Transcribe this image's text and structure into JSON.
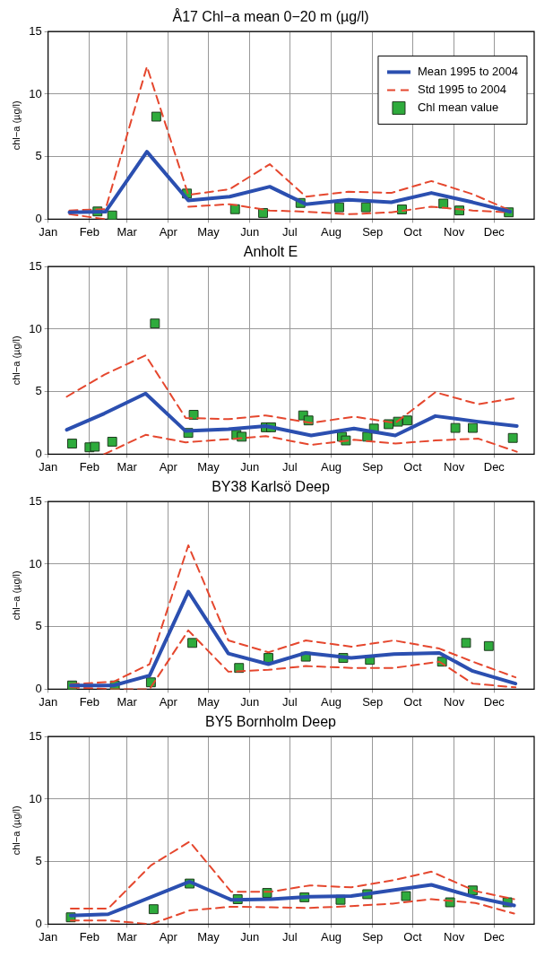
{
  "chart_data": [
    {
      "type": "line",
      "title": "Å17 Chl−a mean 0−20 m (µg/l)",
      "ylabel": "chl−a (µg/l)",
      "xlim": [
        "--01-01",
        "--12-31"
      ],
      "xticks": [
        {
          "value": "--01-01",
          "label": "Jan"
        },
        {
          "value": "--02-01",
          "label": "Feb"
        },
        {
          "value": "--03-01",
          "label": "Mar"
        },
        {
          "value": "--04-01",
          "label": "Apr"
        },
        {
          "value": "--05-01",
          "label": "May"
        },
        {
          "value": "--06-01",
          "label": "Jun"
        },
        {
          "value": "--07-01",
          "label": "Jul"
        },
        {
          "value": "--08-01",
          "label": "Aug"
        },
        {
          "value": "--09-01",
          "label": "Sep"
        },
        {
          "value": "--10-01",
          "label": "Oct"
        },
        {
          "value": "--11-01",
          "label": "Nov"
        },
        {
          "value": "--12-01",
          "label": "Dec"
        }
      ],
      "ylim": [
        0,
        15
      ],
      "yticks": [
        0,
        5,
        10,
        15
      ],
      "grid": true,
      "legend": "top right",
      "x": [
        "--01-17",
        "--02-13",
        "--03-16",
        "--04-16",
        "--05-17",
        "--06-16",
        "--07-13",
        "--08-14",
        "--09-15",
        "--10-15",
        "--11-15",
        "--12-13"
      ],
      "series": [
        {
          "name": "Mean 1995 to 2004",
          "color": "#2b4fb0",
          "line_style": "solid",
          "values": [
            0.55,
            0.6,
            5.4,
            1.5,
            1.8,
            2.6,
            1.2,
            1.55,
            1.35,
            2.1,
            1.35,
            0.6
          ]
        },
        {
          "name": "Std 1995 to 2004",
          "color": "#e5472e",
          "line_style": "dashed",
          "values": [
            0.7,
            0.8,
            12.2,
            1.95,
            2.4,
            4.4,
            1.8,
            2.2,
            2.1,
            3.05,
            2.0,
            0.7
          ]
        },
        {
          "color": "#e5472e",
          "line_style": "dashed",
          "values": [
            0.4,
            0,
            null,
            1.0,
            1.2,
            0.7,
            0.6,
            0.4,
            0.55,
            1.0,
            0.7,
            0.55
          ]
        },
        {
          "name": "Chl mean value",
          "type": "scatter",
          "marker": "square",
          "color": "#2eab3c",
          "x": [
            "--02-07",
            "--02-18",
            "--03-23",
            "--04-15",
            "--05-21",
            "--06-11",
            "--07-09",
            "--08-07",
            "--08-27",
            "--09-23",
            "--10-24",
            "--11-05",
            "--12-12"
          ],
          "values": [
            0.62,
            0.3,
            8.2,
            2.05,
            0.8,
            0.5,
            1.3,
            0.95,
            0.95,
            0.78,
            1.25,
            0.7,
            0.55
          ]
        }
      ]
    },
    {
      "type": "line",
      "title": "Anholt E",
      "ylabel": "chl−a (µg/l)",
      "xlim": [
        "--01-01",
        "--12-31"
      ],
      "xticks": [
        {
          "value": "--01-01",
          "label": "Jan"
        },
        {
          "value": "--02-01",
          "label": "Feb"
        },
        {
          "value": "--03-01",
          "label": "Mar"
        },
        {
          "value": "--04-01",
          "label": "Apr"
        },
        {
          "value": "--05-01",
          "label": "May"
        },
        {
          "value": "--06-01",
          "label": "Jun"
        },
        {
          "value": "--07-01",
          "label": "Jul"
        },
        {
          "value": "--08-01",
          "label": "Aug"
        },
        {
          "value": "--09-01",
          "label": "Sep"
        },
        {
          "value": "--10-01",
          "label": "Oct"
        },
        {
          "value": "--11-01",
          "label": "Nov"
        },
        {
          "value": "--12-01",
          "label": "Dec"
        }
      ],
      "ylim": [
        0,
        15
      ],
      "yticks": [
        0,
        5,
        10,
        15
      ],
      "grid": true,
      "x": [
        "--01-15",
        "--02-12",
        "--03-15",
        "--04-14",
        "--05-16",
        "--06-13",
        "--07-17",
        "--08-18",
        "--09-18",
        "--10-18",
        "--11-19",
        "--12-18"
      ],
      "series": [
        {
          "color": "#2b4fb0",
          "line_style": "solid",
          "values": [
            1.95,
            3.25,
            4.85,
            1.85,
            2.0,
            2.25,
            1.5,
            2.05,
            1.5,
            3.05,
            2.6,
            2.25
          ]
        },
        {
          "color": "#e5472e",
          "line_style": "dashed",
          "values": [
            4.6,
            6.35,
            7.9,
            2.9,
            2.8,
            3.1,
            2.5,
            3.0,
            2.5,
            4.95,
            4.0,
            4.5
          ]
        },
        {
          "color": "#e5472e",
          "line_style": "dashed",
          "values": [
            null,
            0,
            1.55,
            0.95,
            1.2,
            1.45,
            0.75,
            1.15,
            0.85,
            1.1,
            1.25,
            0.2
          ]
        },
        {
          "type": "scatter",
          "marker": "square",
          "color": "#2eab3c",
          "x": [
            "--01-19",
            "--02-01",
            "--02-05",
            "--02-18",
            "--03-22",
            "--04-16",
            "--04-20",
            "--05-22",
            "--05-26",
            "--06-13",
            "--06-17",
            "--07-11",
            "--07-15",
            "--08-09",
            "--08-12",
            "--08-28",
            "--09-02",
            "--09-13",
            "--09-20",
            "--09-27",
            "--11-02",
            "--11-15",
            "--12-15"
          ],
          "values": [
            0.85,
            0.55,
            0.6,
            1.0,
            10.45,
            1.7,
            3.15,
            1.55,
            1.4,
            2.15,
            2.15,
            3.1,
            2.7,
            1.4,
            1.1,
            1.4,
            2.05,
            2.4,
            2.6,
            2.7,
            2.1,
            2.1,
            1.3
          ]
        }
      ]
    },
    {
      "type": "line",
      "title": "BY38 Karlsö Deep",
      "ylabel": "chl−a (µg/l)",
      "xlim": [
        "--01-01",
        "--12-31"
      ],
      "xticks": [
        {
          "value": "--01-01",
          "label": "Jan"
        },
        {
          "value": "--02-01",
          "label": "Feb"
        },
        {
          "value": "--03-01",
          "label": "Mar"
        },
        {
          "value": "--04-01",
          "label": "Apr"
        },
        {
          "value": "--05-01",
          "label": "May"
        },
        {
          "value": "--06-01",
          "label": "Jun"
        },
        {
          "value": "--07-01",
          "label": "Jul"
        },
        {
          "value": "--08-01",
          "label": "Aug"
        },
        {
          "value": "--09-01",
          "label": "Sep"
        },
        {
          "value": "--10-01",
          "label": "Oct"
        },
        {
          "value": "--11-01",
          "label": "Nov"
        },
        {
          "value": "--12-01",
          "label": "Dec"
        }
      ],
      "ylim": [
        0,
        15
      ],
      "yticks": [
        0,
        5,
        10,
        15
      ],
      "grid": true,
      "x": [
        "--01-18",
        "--02-19",
        "--03-18",
        "--04-16",
        "--05-16",
        "--06-15",
        "--07-13",
        "--08-16",
        "--09-17",
        "--10-21",
        "--11-15",
        "--12-17"
      ],
      "series": [
        {
          "color": "#2b4fb0",
          "line_style": "solid",
          "values": [
            0.3,
            0.3,
            1.1,
            7.8,
            2.85,
            2.0,
            2.9,
            2.5,
            2.8,
            2.9,
            1.45,
            0.45
          ]
        },
        {
          "color": "#e5472e",
          "line_style": "dashed",
          "values": [
            0.4,
            0.6,
            2.0,
            11.5,
            3.9,
            2.95,
            3.9,
            3.4,
            3.9,
            3.25,
            2.2,
            0.95
          ]
        },
        {
          "color": "#e5472e",
          "line_style": "dashed",
          "values": [
            0.15,
            0,
            0,
            4.7,
            1.4,
            1.55,
            1.85,
            1.7,
            1.7,
            2.2,
            0.45,
            0.15
          ]
        },
        {
          "type": "scatter",
          "marker": "square",
          "color": "#2eab3c",
          "x": [
            "--01-19",
            "--02-20",
            "--03-19",
            "--04-19",
            "--05-24",
            "--06-15",
            "--07-13",
            "--08-10",
            "--08-30",
            "--10-23",
            "--11-10",
            "--11-27"
          ],
          "values": [
            0.3,
            0.3,
            0.55,
            3.7,
            1.7,
            2.5,
            2.6,
            2.5,
            2.35,
            2.2,
            3.7,
            3.45
          ]
        }
      ]
    },
    {
      "type": "line",
      "title": "BY5 Bornholm Deep",
      "ylabel": "chl−a (µg/l)",
      "xlim": [
        "--01-01",
        "--12-31"
      ],
      "xticks": [
        {
          "value": "--01-01",
          "label": "Jan"
        },
        {
          "value": "--02-01",
          "label": "Feb"
        },
        {
          "value": "--03-01",
          "label": "Mar"
        },
        {
          "value": "--04-01",
          "label": "Apr"
        },
        {
          "value": "--05-01",
          "label": "May"
        },
        {
          "value": "--06-01",
          "label": "Jun"
        },
        {
          "value": "--07-01",
          "label": "Jul"
        },
        {
          "value": "--08-01",
          "label": "Aug"
        },
        {
          "value": "--09-01",
          "label": "Sep"
        },
        {
          "value": "--10-01",
          "label": "Oct"
        },
        {
          "value": "--11-01",
          "label": "Nov"
        },
        {
          "value": "--12-01",
          "label": "Dec"
        }
      ],
      "ylim": [
        0,
        15
      ],
      "yticks": [
        0,
        5,
        10,
        15
      ],
      "grid": true,
      "x": [
        "--01-18",
        "--02-15",
        "--03-19",
        "--04-17",
        "--05-18",
        "--06-17",
        "--07-16",
        "--08-16",
        "--09-16",
        "--10-15",
        "--11-17",
        "--12-16"
      ],
      "series": [
        {
          "color": "#2b4fb0",
          "line_style": "solid",
          "x": [
            "--01-18",
            "--02-15",
            "--04-17",
            "--05-18",
            "--06-17",
            "--07-16",
            "--08-16",
            "--10-15",
            "--11-17",
            "--12-16"
          ],
          "values": [
            0.7,
            0.8,
            3.4,
            1.95,
            2.0,
            2.2,
            2.25,
            3.15,
            2.15,
            1.5
          ]
        },
        {
          "color": "#e5472e",
          "line_style": "dashed",
          "values": [
            1.25,
            1.25,
            4.7,
            6.6,
            2.6,
            2.6,
            3.1,
            2.95,
            3.5,
            4.2,
            2.65,
            2.0
          ]
        },
        {
          "color": "#e5472e",
          "line_style": "dashed",
          "values": [
            0.3,
            0.3,
            0,
            1.1,
            1.4,
            1.35,
            1.3,
            1.45,
            1.65,
            2.0,
            1.7,
            0.85
          ]
        },
        {
          "type": "scatter",
          "marker": "square",
          "color": "#2eab3c",
          "x": [
            "--01-18",
            "--03-21",
            "--04-17",
            "--05-23",
            "--06-14",
            "--07-12",
            "--08-08",
            "--08-28",
            "--09-26",
            "--10-29",
            "--11-15",
            "--12-11"
          ],
          "values": [
            0.55,
            1.2,
            3.25,
            2.0,
            2.5,
            2.15,
            1.95,
            2.4,
            2.25,
            1.75,
            2.7,
            1.75
          ]
        }
      ]
    }
  ]
}
